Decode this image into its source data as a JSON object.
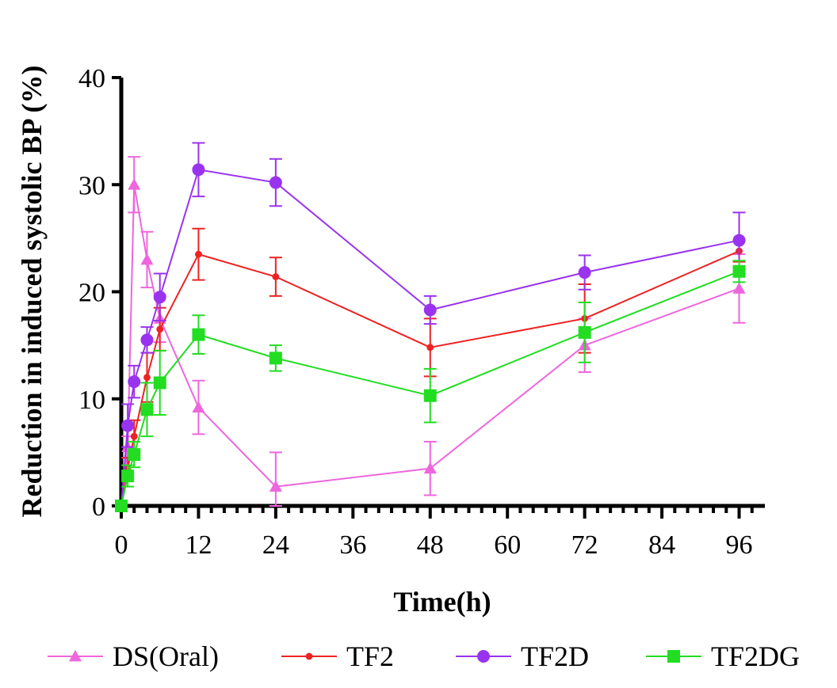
{
  "chart_data": {
    "type": "line",
    "xlabel": "Time(h)",
    "ylabel": "Reduction in induced systolic BP (%)",
    "xlim": [
      0,
      100
    ],
    "ylim": [
      0,
      40
    ],
    "xticks": [
      0,
      12,
      24,
      36,
      48,
      60,
      72,
      84,
      96
    ],
    "yticks": [
      0,
      10,
      20,
      30,
      40
    ],
    "minor_xticks": [
      2,
      4,
      6,
      8,
      10,
      14,
      16,
      18,
      20,
      22,
      26,
      28,
      30,
      32,
      34,
      38,
      40,
      42,
      44,
      46,
      50,
      52,
      54,
      56,
      58,
      62,
      64,
      66,
      68,
      70,
      74,
      76,
      78,
      80,
      82,
      86,
      88,
      90,
      92,
      94,
      98
    ],
    "legend_position": "bottom",
    "series": [
      {
        "name": "DS(Oral)",
        "color": "#ee66dd",
        "marker": "triangle",
        "x": [
          0,
          1,
          2,
          4,
          6,
          12,
          24,
          48,
          72,
          96
        ],
        "y": [
          0,
          5.5,
          30,
          23,
          17.5,
          9.2,
          1.8,
          3.5,
          15,
          20.3
        ],
        "err": [
          0,
          1,
          2.6,
          2.6,
          2.2,
          2.5,
          3.2,
          2.5,
          2.5,
          3.2
        ]
      },
      {
        "name": "TF2",
        "color": "#ee2222",
        "marker": "dot",
        "x": [
          0,
          1,
          2,
          4,
          6,
          12,
          24,
          48,
          72,
          96
        ],
        "y": [
          0,
          3.5,
          6.5,
          12,
          16.5,
          23.5,
          21.4,
          14.8,
          17.5,
          23.8
        ],
        "err": [
          0,
          1,
          1.5,
          2.3,
          2,
          2.4,
          1.8,
          2.7,
          3.2,
          1
        ]
      },
      {
        "name": "TF2D",
        "color": "#9933ee",
        "marker": "circle",
        "x": [
          0,
          1,
          2,
          4,
          6,
          12,
          24,
          48,
          72,
          96
        ],
        "y": [
          0,
          7.5,
          11.6,
          15.5,
          19.5,
          31.4,
          30.2,
          18.3,
          21.8,
          24.8
        ],
        "err": [
          0,
          2,
          1.5,
          1.2,
          2.2,
          2.5,
          2.2,
          1.3,
          1.6,
          2.6
        ]
      },
      {
        "name": "TF2DG",
        "color": "#22dd22",
        "marker": "square",
        "x": [
          0,
          1,
          2,
          4,
          6,
          12,
          24,
          48,
          72,
          96
        ],
        "y": [
          0,
          2.8,
          4.8,
          9,
          11.5,
          16,
          13.8,
          10.3,
          16.2,
          21.9
        ],
        "err": [
          0,
          1,
          1.2,
          2.5,
          3,
          1.8,
          1.2,
          2.5,
          2.8,
          1
        ]
      }
    ]
  }
}
